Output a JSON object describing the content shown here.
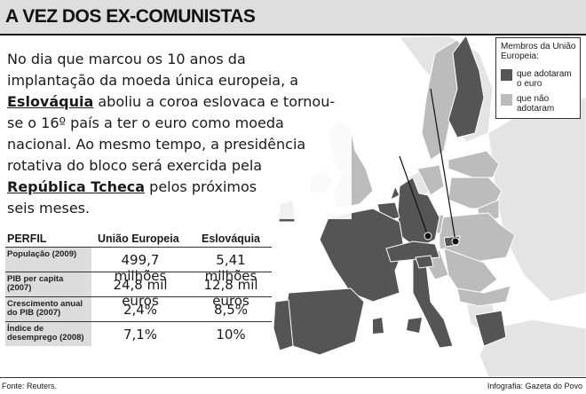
{
  "header": {
    "title": "A VEZ DOS EX-COMUNISTAS"
  },
  "intro": {
    "line1": "No dia que marcou os 10 anos da",
    "line2": "implantação da moeda única europeia, a",
    "country1": "Eslováquia",
    "line3_rest": " aboliu a coroa eslovaca e tornou-",
    "line4": "se o 16º país a ter o euro como moeda",
    "line5": "nacional. Ao mesmo tempo, a presidência",
    "line6": "rotativa do bloco será exercida pela",
    "country2": "República Tcheca",
    "line7_rest": " pelos próximos",
    "line8": "seis meses."
  },
  "legend": {
    "title": "Membros da União Europeia:",
    "items": [
      {
        "label": "que adotaram o euro",
        "color": "#555555"
      },
      {
        "label": "que não adotaram",
        "color": "#bcbcbc"
      }
    ]
  },
  "profile_table": {
    "headers": [
      "PERFIL",
      "União Europeia",
      "Eslováquia"
    ],
    "rows": [
      {
        "label": "População (2009)",
        "eu": "499,7 milhões",
        "sk": "5,41 milhões"
      },
      {
        "label": "PIB per capita (2007)",
        "eu": "24,8 mil euros",
        "sk": "12,8 mil euros"
      },
      {
        "label": "Crescimento anual do PIB (2007)",
        "eu": "2,4%",
        "sk": "8,5%"
      },
      {
        "label": "Índice de desemprego (2008)",
        "eu": "7,1%",
        "sk": "10%"
      }
    ]
  },
  "map_colors": {
    "euro": "#555555",
    "non_euro_eu": "#bcbcbc",
    "non_eu": "#e4e4e4",
    "sea": "#ffffff"
  },
  "footer": {
    "source": "Fonte: Reuters.",
    "credit": "Infografia: Gazeta do Povo"
  }
}
